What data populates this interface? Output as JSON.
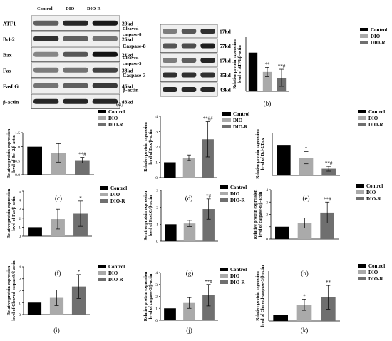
{
  "colors": {
    "control": "#000000",
    "dio": "#aaaaaa",
    "dior": "#6f6f6f",
    "bg": "#ffffff"
  },
  "blots": [
    {
      "header": [
        "Control",
        "DIO",
        "DIO-R"
      ],
      "rows": [
        {
          "label": "ATF1",
          "kd": "29kd",
          "i": [
            0.55,
            0.85,
            0.92
          ]
        },
        {
          "label": "Bcl-2",
          "kd": "26kd",
          "i": [
            0.8,
            0.55,
            0.45
          ]
        },
        {
          "label": "Bax",
          "kd": "21kd",
          "i": [
            0.35,
            0.6,
            0.95
          ]
        },
        {
          "label": "Fas",
          "kd": "38kd",
          "i": [
            0.4,
            0.45,
            0.7
          ]
        },
        {
          "label": "FasLG",
          "kd": "46kd",
          "i": [
            0.45,
            0.55,
            0.75
          ]
        },
        {
          "label": "β-actin",
          "kd": "43kd",
          "i": [
            0.85,
            0.85,
            0.85
          ]
        }
      ]
    },
    {
      "header": [
        "Control",
        "DIO",
        "DIO-R"
      ],
      "rows": [
        {
          "label": "Cleaved-caspase-8",
          "kd": "17kd",
          "i": [
            0.4,
            0.6,
            0.8
          ]
        },
        {
          "label": "Caspase-8",
          "kd": "57kd",
          "i": [
            0.6,
            0.65,
            0.9
          ]
        },
        {
          "label": "Cleaved-caspase-3",
          "kd": "17kd",
          "i": [
            0.4,
            0.55,
            0.85
          ]
        },
        {
          "label": "Caspase-3",
          "kd": "35kd",
          "i": [
            0.8,
            0.8,
            0.8
          ]
        },
        {
          "label": "β-actin",
          "kd": "43kd",
          "i": [
            0.85,
            0.85,
            0.85
          ]
        }
      ]
    }
  ],
  "panel_a_label": "(a)",
  "chart_data": [
    {
      "type": "bar",
      "panel": "(b)",
      "ylabel": "Relative protein expression level of ATF1/β-actin",
      "categories": [
        "Control",
        "DIO",
        "DIO-R"
      ],
      "values": [
        1.0,
        0.5,
        0.35
      ],
      "errors": [
        0,
        0.12,
        0.22
      ],
      "annotations": [
        "",
        "**",
        "**#"
      ],
      "ylim": [
        0,
        1.4
      ],
      "ticks": [],
      "legend": [
        "Control",
        "DIO",
        "DIO-R"
      ]
    },
    {
      "type": "bar",
      "panel": "(c)",
      "ylabel": "Relative protein expression level of Bcl-2/β-actin",
      "categories": [
        "Control",
        "DIO",
        "DIO-R"
      ],
      "values": [
        1.0,
        0.78,
        0.52
      ],
      "errors": [
        0,
        0.33,
        0.1
      ],
      "annotations": [
        "",
        "",
        "**#"
      ],
      "ylim": [
        0,
        1.5
      ],
      "ticks": [
        "0.0",
        "0.5",
        "1.0",
        "1.5"
      ],
      "legend": [
        "Control",
        "DIO",
        "DIO-R"
      ]
    },
    {
      "type": "bar",
      "panel": "(d)",
      "ylabel": "Relative protein expression level of Bax/β-actin",
      "categories": [
        "Control",
        "DIO",
        "DIO-R"
      ],
      "values": [
        1.0,
        1.3,
        2.5
      ],
      "errors": [
        0,
        0.18,
        1.15
      ],
      "annotations": [
        "",
        "",
        "**##"
      ],
      "ylim": [
        0,
        4
      ],
      "ticks": [
        "0",
        "1",
        "2",
        "3",
        "4"
      ],
      "legend": [
        "Control",
        "DIO",
        "DIO-R"
      ]
    },
    {
      "type": "bar",
      "panel": "(e)",
      "ylabel": "Relative protein expression level of Bcl-2/Bax",
      "categories": [
        "Control",
        "DIO",
        "DIO-R"
      ],
      "values": [
        1.0,
        0.58,
        0.22
      ],
      "errors": [
        0,
        0.2,
        0.08
      ],
      "annotations": [
        "",
        "*",
        "**#"
      ],
      "ylim": [
        0,
        1.4
      ],
      "ticks": [],
      "legend": [
        "Control",
        "DIO",
        "DIO-R"
      ]
    },
    {
      "type": "bar",
      "panel": "(f)",
      "ylabel": "Relative protein expression level of Fas/β-actin",
      "categories": [
        "Control",
        "DIO",
        "DIO-R"
      ],
      "values": [
        1.0,
        1.9,
        2.5
      ],
      "errors": [
        0,
        1.1,
        1.4
      ],
      "annotations": [
        "",
        "",
        "*"
      ],
      "ylim": [
        0,
        5
      ],
      "ticks": [
        "0",
        "1",
        "2",
        "3",
        "4",
        "5"
      ],
      "legend": [
        "Control",
        "DIO",
        "DIO-R"
      ]
    },
    {
      "type": "bar",
      "panel": "(g)",
      "ylabel": "Relative protein expression level of FasLG/β-actin",
      "categories": [
        "Control",
        "DIO",
        "DIO-R"
      ],
      "values": [
        1.0,
        1.05,
        1.9
      ],
      "errors": [
        0,
        0.18,
        0.6
      ],
      "annotations": [
        "",
        "",
        "*#"
      ],
      "ylim": [
        0,
        3
      ],
      "ticks": [
        "0",
        "1",
        "2",
        "3"
      ],
      "legend": [
        "Control",
        "DIO",
        "DIO-R"
      ]
    },
    {
      "type": "bar",
      "panel": "(h)",
      "ylabel": "Relative protein expression level of caspase-8/β-actin",
      "categories": [
        "Control",
        "DIO",
        "DIO-R"
      ],
      "values": [
        1.0,
        1.3,
        2.15
      ],
      "errors": [
        0,
        0.4,
        0.85
      ],
      "annotations": [
        "",
        "",
        "**#"
      ],
      "ylim": [
        0,
        4
      ],
      "ticks": [
        "0",
        "1",
        "2",
        "3",
        "4"
      ],
      "legend": [
        "Control",
        "DIO",
        "DIO-R"
      ]
    },
    {
      "type": "bar",
      "panel": "(i)",
      "ylabel": "Relative protein expression level of Cleaved-caspase8/β-actin",
      "categories": [
        "Control",
        "DIO",
        "DIO-R"
      ],
      "values": [
        1.0,
        1.4,
        2.35
      ],
      "errors": [
        0,
        0.65,
        1.0
      ],
      "annotations": [
        "",
        "",
        "*"
      ],
      "ylim": [
        0,
        4
      ],
      "ticks": [
        "0",
        "1",
        "2",
        "3",
        "4"
      ],
      "legend": [
        "Control",
        "DIO",
        "DIO-R"
      ]
    },
    {
      "type": "bar",
      "panel": "(j)",
      "ylabel": "Relative protein expression level of caspase-3/β-actin",
      "categories": [
        "Control",
        "DIO",
        "DIO-R"
      ],
      "values": [
        1.0,
        1.45,
        2.1
      ],
      "errors": [
        0,
        0.45,
        0.9
      ],
      "annotations": [
        "",
        "",
        "**#"
      ],
      "ylim": [
        0,
        4
      ],
      "ticks": [
        "0",
        "1",
        "2",
        "3",
        "4"
      ],
      "legend": [
        "Control",
        "DIO",
        "DIO-R"
      ]
    },
    {
      "type": "bar",
      "panel": "(k)",
      "ylabel": "Relative protein expression level of Cleaved-caspase-3/β-actin",
      "categories": [
        "Control",
        "DIO",
        "DIO-R"
      ],
      "values": [
        1.0,
        2.6,
        3.8
      ],
      "errors": [
        0,
        0.9,
        1.9
      ],
      "annotations": [
        "",
        "*",
        "**"
      ],
      "ylim": [
        0,
        8
      ],
      "ticks": [],
      "legend": [
        "Control",
        "DIO",
        "DIO-R"
      ]
    }
  ]
}
